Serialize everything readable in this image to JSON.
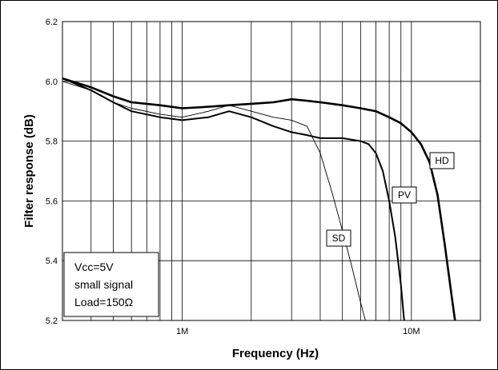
{
  "chart_data": {
    "type": "line",
    "title": "",
    "xlabel": "Frequency  (Hz)",
    "ylabel": "Filter response  (dB)",
    "xscale": "log",
    "xlim": [
      300000,
      20000000
    ],
    "ylim": [
      5.2,
      6.2
    ],
    "grid": true,
    "y_ticks": [
      {
        "value": 5.2,
        "label": "5.2"
      },
      {
        "value": 5.4,
        "label": "5.4"
      },
      {
        "value": 5.6,
        "label": "5.6"
      },
      {
        "value": 5.8,
        "label": "5.8"
      },
      {
        "value": 6.0,
        "label": "6.0"
      },
      {
        "value": 6.2,
        "label": "6.2"
      }
    ],
    "x_ticks": [
      {
        "value": 1000000,
        "label": "1M"
      },
      {
        "value": 10000000,
        "label": "10M"
      }
    ],
    "annotation_lines": [
      "Vcc=5V",
      "small signal",
      "Load=150Ω"
    ],
    "series": [
      {
        "name": "HD",
        "weight": "heavy",
        "x": [
          300000,
          400000,
          500000,
          600000,
          800000,
          1000000,
          1300000,
          1600000,
          2000000,
          2500000,
          3000000,
          3500000,
          4000000,
          5000000,
          6000000,
          7000000,
          8000000,
          9000000,
          10000000,
          11000000,
          12000000,
          13000000,
          14000000,
          15000000,
          15500000
        ],
        "y": [
          6.01,
          5.98,
          5.95,
          5.93,
          5.92,
          5.91,
          5.915,
          5.92,
          5.925,
          5.93,
          5.94,
          5.935,
          5.93,
          5.92,
          5.91,
          5.9,
          5.88,
          5.86,
          5.83,
          5.79,
          5.73,
          5.62,
          5.45,
          5.28,
          5.2
        ]
      },
      {
        "name": "PV",
        "weight": "medium",
        "x": [
          300000,
          400000,
          500000,
          600000,
          800000,
          1000000,
          1300000,
          1600000,
          2000000,
          2500000,
          3000000,
          3500000,
          4000000,
          5000000,
          6000000,
          6500000,
          7000000,
          7500000,
          8000000,
          8500000,
          9000000,
          9300000
        ],
        "y": [
          6.01,
          5.97,
          5.93,
          5.9,
          5.88,
          5.87,
          5.88,
          5.9,
          5.88,
          5.85,
          5.83,
          5.82,
          5.81,
          5.81,
          5.8,
          5.79,
          5.76,
          5.7,
          5.6,
          5.48,
          5.32,
          5.2
        ]
      },
      {
        "name": "SD",
        "weight": "thin",
        "x": [
          300000,
          400000,
          500000,
          600000,
          800000,
          1000000,
          1300000,
          1600000,
          2000000,
          2500000,
          3000000,
          3500000,
          4000000,
          4500000,
          5000000,
          5500000,
          6000000,
          6300000
        ],
        "y": [
          6.0,
          5.97,
          5.93,
          5.91,
          5.89,
          5.88,
          5.9,
          5.92,
          5.9,
          5.88,
          5.87,
          5.85,
          5.76,
          5.63,
          5.5,
          5.38,
          5.26,
          5.2
        ]
      }
    ]
  }
}
